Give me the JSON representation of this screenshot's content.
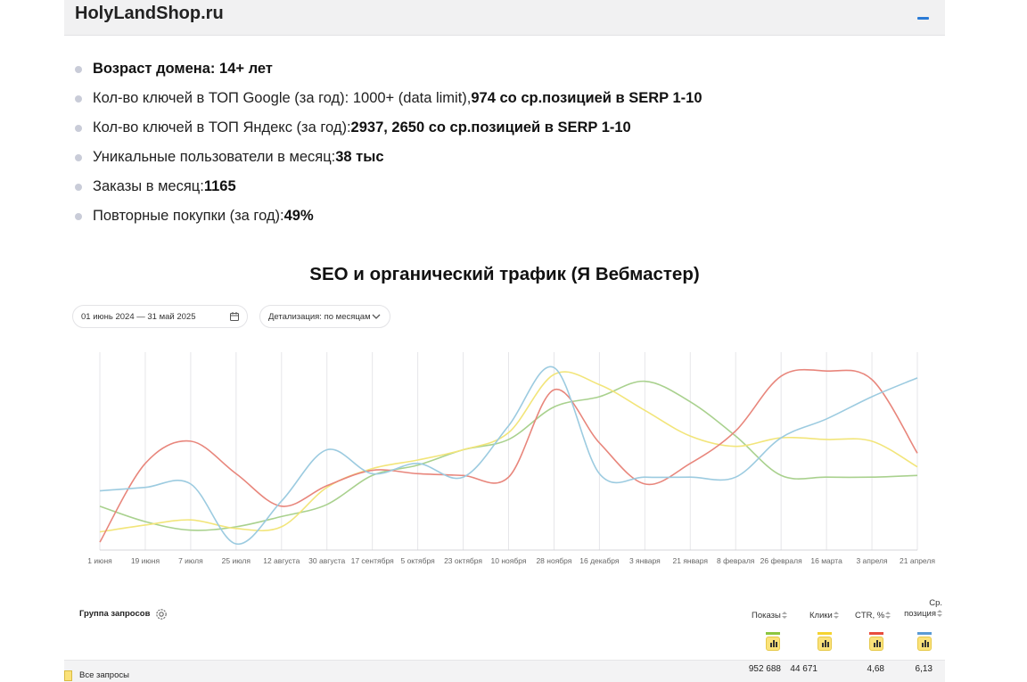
{
  "header": {
    "title": "HolyLandShop.ru"
  },
  "stats": [
    {
      "label": "",
      "value": "Возраст домена: 14+ лет"
    },
    {
      "label": "Кол-во ключей в ТОП Google (за год): 1000+ (data limit), ",
      "value": "974 со ср.позицией в SERP 1-10"
    },
    {
      "label": "Кол-во ключей в ТОП Яндекс (за год): ",
      "value": "2937, 2650 со ср.позицией в SERP 1-10"
    },
    {
      "label": "Уникальные пользователи в месяц: ",
      "value": "38 тыс"
    },
    {
      "label": "Заказы в месяц: ",
      "value": "1165"
    },
    {
      "label": "Повторные покупки (за год): ",
      "value": "49%"
    }
  ],
  "section_title": "SEO и органический трафик (Я Вебмастер)",
  "filters": {
    "date_range": "01 июнь 2024 — 31 май 2025",
    "detail": "Детализация: по месяцам"
  },
  "icons": {
    "collapse": "minus-icon",
    "calendar": "calendar-icon",
    "chevron": "chevron-down-icon",
    "settings": "gear-icon",
    "chart_toggle": "bar-chart-icon"
  },
  "chart_data": {
    "type": "line",
    "x": [
      "1 июня",
      "19 июня",
      "7 июля",
      "25 июля",
      "12 августа",
      "30 августа",
      "17 сентября",
      "5 октября",
      "23 октября",
      "10 ноября",
      "28 ноября",
      "16 декабря",
      "3 января",
      "21 января",
      "8 февраля",
      "26 февраля",
      "16 марта",
      "3 апреля",
      "21 апреля"
    ],
    "ylim": [
      0,
      100
    ],
    "grid": "vertical",
    "series": [
      {
        "name": "Показы",
        "color": "#a9d18e",
        "values": [
          23,
          14,
          9,
          11,
          17,
          24,
          41,
          47,
          56,
          62,
          81,
          87,
          96,
          84,
          64,
          41,
          40,
          40,
          41
        ]
      },
      {
        "name": "Клики",
        "color": "#f2e57a",
        "values": [
          8,
          12,
          15,
          10,
          11,
          34,
          45,
          50,
          56,
          66,
          100,
          94,
          79,
          64,
          58,
          63,
          62,
          61,
          46
        ]
      },
      {
        "name": "CTR, %",
        "color": "#e8867c",
        "values": [
          2,
          48,
          61,
          42,
          23,
          35,
          44,
          42,
          41,
          40,
          91,
          60,
          36,
          48,
          67,
          99,
          102,
          97,
          54
        ]
      },
      {
        "name": "Ср. позиция",
        "color": "#9ccbe0",
        "values": [
          32,
          34,
          36,
          1,
          26,
          56,
          42,
          48,
          40,
          70,
          104,
          42,
          40,
          40,
          40,
          63,
          74,
          87,
          98
        ]
      }
    ]
  },
  "table": {
    "group_label": "Группа запросов",
    "columns": [
      {
        "label": "Показы",
        "color": "#8cc63f"
      },
      {
        "label": "Клики",
        "color": "#f5d430"
      },
      {
        "label": "CTR, %",
        "color": "#e84c3d"
      },
      {
        "label": "Ср.\nпозиция",
        "color": "#5b9bd5"
      }
    ],
    "rows": [
      {
        "label": "Все запросы",
        "values": [
          "952 688",
          "44 671",
          "4,68",
          "6,13"
        ]
      }
    ]
  }
}
